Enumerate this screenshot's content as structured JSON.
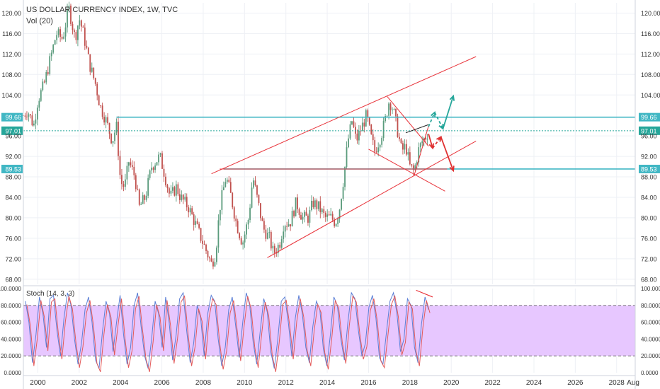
{
  "header": {
    "title": "US DOLLAR CURRENCY INDEX, 1W, TVC",
    "indicator": "Vol (20)"
  },
  "stoch": {
    "label": "Stoch (14, 3, 3)"
  },
  "colors": {
    "up": "#5a9b7c",
    "down": "#c0504d",
    "channel": "#e8333a",
    "level": "#41b7c4",
    "green_arrow": "#26a69a",
    "red_arrow": "#e03131",
    "stoch_fill": "#e7c7ff",
    "stoch_line": "#e35a5a",
    "grid": "#eef0f5"
  },
  "chart_data": [
    {
      "type": "candlestick",
      "title": "US DOLLAR CURRENCY INDEX, 1W, TVC",
      "x_ticks": [
        "2000",
        "2002",
        "2004",
        "2006",
        "2008",
        "2010",
        "2012",
        "2014",
        "2016",
        "2018",
        "2020",
        "2022",
        "2024",
        "2026",
        "2028",
        "Aug"
      ],
      "y_ticks": [
        "120.00",
        "116.00",
        "112.00",
        "108.00",
        "104.00",
        "99.66",
        "97.01",
        "96.00",
        "92.00",
        "89.53",
        "88.00",
        "84.00",
        "80.00",
        "76.00",
        "72.00",
        "68.00"
      ],
      "ylim": [
        67,
        122
      ],
      "xlim": [
        1999.3,
        2028.9
      ],
      "price_path": [
        [
          1999.3,
          100
        ],
        [
          1999.5,
          101
        ],
        [
          1999.8,
          98
        ],
        [
          2000.0,
          103
        ],
        [
          2000.3,
          106
        ],
        [
          2000.6,
          111
        ],
        [
          2000.9,
          116
        ],
        [
          2001.2,
          115
        ],
        [
          2001.5,
          121
        ],
        [
          2001.8,
          115
        ],
        [
          2002.0,
          119
        ],
        [
          2002.2,
          116
        ],
        [
          2002.5,
          110
        ],
        [
          2002.8,
          106
        ],
        [
          2003.0,
          102
        ],
        [
          2003.3,
          99
        ],
        [
          2003.6,
          95
        ],
        [
          2003.8,
          98
        ],
        [
          2004.0,
          87
        ],
        [
          2004.2,
          86
        ],
        [
          2004.4,
          91
        ],
        [
          2004.7,
          88
        ],
        [
          2004.9,
          82
        ],
        [
          2005.2,
          84
        ],
        [
          2005.5,
          90
        ],
        [
          2005.9,
          92
        ],
        [
          2006.1,
          89
        ],
        [
          2006.4,
          84
        ],
        [
          2006.7,
          86
        ],
        [
          2006.9,
          84
        ],
        [
          2007.3,
          82
        ],
        [
          2007.6,
          79
        ],
        [
          2007.9,
          76
        ],
        [
          2008.2,
          73
        ],
        [
          2008.4,
          71
        ],
        [
          2008.6,
          73
        ],
        [
          2008.8,
          82
        ],
        [
          2009.1,
          88
        ],
        [
          2009.3,
          85
        ],
        [
          2009.6,
          79
        ],
        [
          2009.9,
          75
        ],
        [
          2010.2,
          80
        ],
        [
          2010.4,
          88
        ],
        [
          2010.6,
          84
        ],
        [
          2010.9,
          78
        ],
        [
          2011.2,
          76
        ],
        [
          2011.4,
          73
        ],
        [
          2011.7,
          75
        ],
        [
          2011.9,
          79
        ],
        [
          2012.2,
          79
        ],
        [
          2012.5,
          83
        ],
        [
          2012.8,
          80
        ],
        [
          2013.1,
          80
        ],
        [
          2013.3,
          83
        ],
        [
          2013.6,
          82
        ],
        [
          2013.9,
          80
        ],
        [
          2014.2,
          80
        ],
        [
          2014.4,
          79
        ],
        [
          2014.6,
          82
        ],
        [
          2014.8,
          88
        ],
        [
          2015.0,
          95
        ],
        [
          2015.2,
          99
        ],
        [
          2015.4,
          95
        ],
        [
          2015.6,
          97
        ],
        [
          2015.9,
          100
        ],
        [
          2016.1,
          96
        ],
        [
          2016.3,
          93
        ],
        [
          2016.6,
          96
        ],
        [
          2016.8,
          99
        ],
        [
          2017.0,
          103
        ],
        [
          2017.2,
          101
        ],
        [
          2017.4,
          97
        ],
        [
          2017.6,
          93
        ],
        [
          2017.8,
          94
        ],
        [
          2018.0,
          90
        ],
        [
          2018.2,
          89
        ],
        [
          2018.4,
          93
        ],
        [
          2018.6,
          95
        ],
        [
          2018.8,
          96
        ],
        [
          2018.9,
          97.01
        ]
      ],
      "levels": [
        {
          "label": "99.66",
          "value": 99.66
        },
        {
          "label": "97.01",
          "value": 97.01
        },
        {
          "label": "89.53",
          "value": 89.53
        }
      ],
      "channel_lines": [
        [
          [
            2008.4,
            88.6
          ],
          [
            2021.2,
            111.5
          ]
        ],
        [
          [
            2011.1,
            72.2
          ],
          [
            2021.2,
            95.0
          ]
        ],
        [
          [
            2008.8,
            89.53
          ],
          [
            2019.8,
            89.53
          ]
        ],
        [
          [
            2016.9,
            103.7
          ],
          [
            2018.9,
            94.0
          ]
        ],
        [
          [
            2016.0,
            93.4
          ],
          [
            2019.7,
            85.2
          ]
        ],
        [
          [
            2018.2,
            88.2
          ],
          [
            2018.9,
            97.9
          ]
        ]
      ]
    },
    {
      "type": "line",
      "title": "Stoch (14, 3, 3)",
      "y_ticks": [
        "100.0000",
        "80.0000",
        "60.0000",
        "40.0000",
        "20.0000",
        "0.0000"
      ],
      "ylim": [
        0,
        100
      ],
      "band": [
        20,
        80
      ],
      "series": [
        {
          "values": [
            85,
            60,
            12,
            45,
            90,
            70,
            30,
            88,
            92,
            50,
            20,
            65,
            95,
            80,
            40,
            10,
            35,
            75,
            90,
            60,
            15,
            5,
            50,
            85,
            70,
            25,
            60,
            92,
            45,
            10,
            30,
            80,
            95,
            55,
            20,
            5,
            40,
            85,
            70,
            30,
            90,
            60,
            15,
            45,
            88,
            95,
            50,
            12,
            35,
            80,
            65,
            20,
            70,
            92,
            85,
            40,
            8,
            30,
            75,
            90,
            55,
            18,
            60,
            95,
            80,
            35,
            10,
            50,
            88,
            72,
            25,
            5,
            40,
            85,
            90,
            60,
            20,
            65,
            92,
            70,
            30,
            12,
            55,
            85,
            75,
            28,
            8,
            45,
            90,
            80,
            40,
            15,
            60,
            95,
            88,
            50,
            20,
            35,
            78,
            92,
            65,
            18,
            10,
            48,
            85,
            95,
            70,
            25,
            40,
            88,
            80,
            30,
            12,
            58,
            90,
            75
          ]
        }
      ]
    }
  ]
}
